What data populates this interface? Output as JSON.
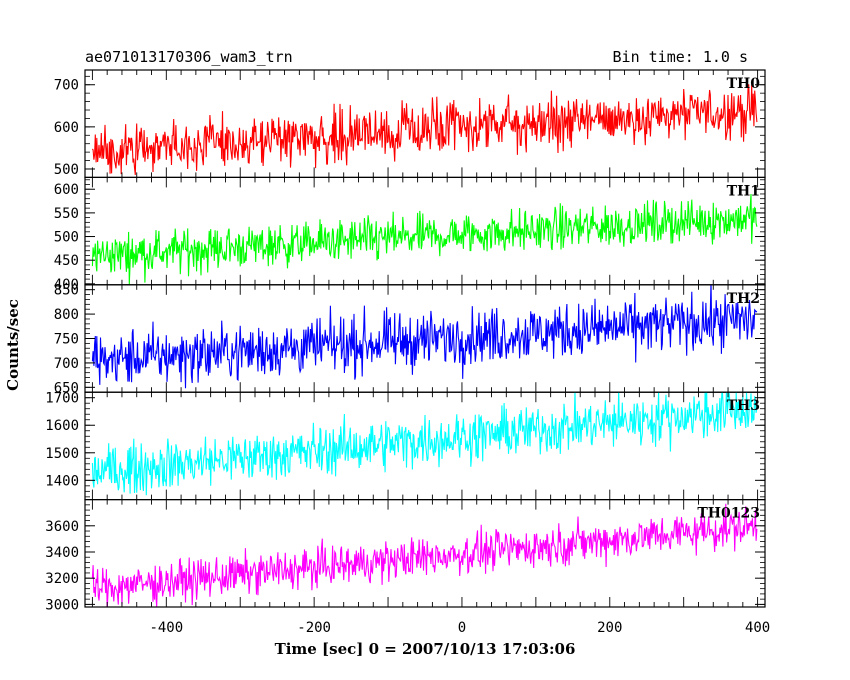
{
  "header": {
    "file_name": "ae071013170306_wam3_trn",
    "bin_time": "Bin time: 1.0 s"
  },
  "axes": {
    "ylabel": "Counts/sec",
    "xlabel": "Time [sec] 0 = 2007/10/13 17:03:06",
    "x_ticks": [
      "-400",
      "-200",
      "0",
      "200",
      "400"
    ]
  },
  "chart_data": {
    "type": "line",
    "x_range": [
      -510,
      410
    ],
    "x_ticks": [
      -400,
      -200,
      0,
      200,
      400
    ],
    "x_start": -500,
    "x_end": 399,
    "x_step": 1,
    "xlabel": "Time [sec] 0 = 2007/10/13 17:03:06",
    "ylabel": "Counts/sec",
    "title": "ae071013170306_wam3_trn",
    "subtitle": "Bin time: 1.0 s",
    "panels": [
      {
        "name": "TH0",
        "color": "#ff0000",
        "ylim": [
          480,
          735
        ],
        "yticks": [
          500,
          600,
          700
        ],
        "trend_start": 545,
        "trend_end": 640,
        "noise": 30
      },
      {
        "name": "TH1",
        "color": "#00ff00",
        "ylim": [
          398,
          625
        ],
        "yticks": [
          400,
          450,
          500,
          550,
          600
        ],
        "trend_start": 460,
        "trend_end": 540,
        "noise": 22
      },
      {
        "name": "TH2",
        "color": "#0000ff",
        "ylim": [
          640,
          860
        ],
        "yticks": [
          650,
          700,
          750,
          800,
          850
        ],
        "trend_start": 705,
        "trend_end": 790,
        "noise": 28
      },
      {
        "name": "TH3",
        "color": "#00ffff",
        "ylim": [
          1330,
          1720
        ],
        "yticks": [
          1400,
          1500,
          1600,
          1700
        ],
        "trend_start": 1430,
        "trend_end": 1660,
        "noise": 45
      },
      {
        "name": "TH0123",
        "color": "#ff00ff",
        "ylim": [
          2980,
          3800
        ],
        "yticks": [
          3000,
          3200,
          3400,
          3600
        ],
        "trend_start": 3120,
        "trend_end": 3600,
        "noise": 75
      }
    ]
  }
}
